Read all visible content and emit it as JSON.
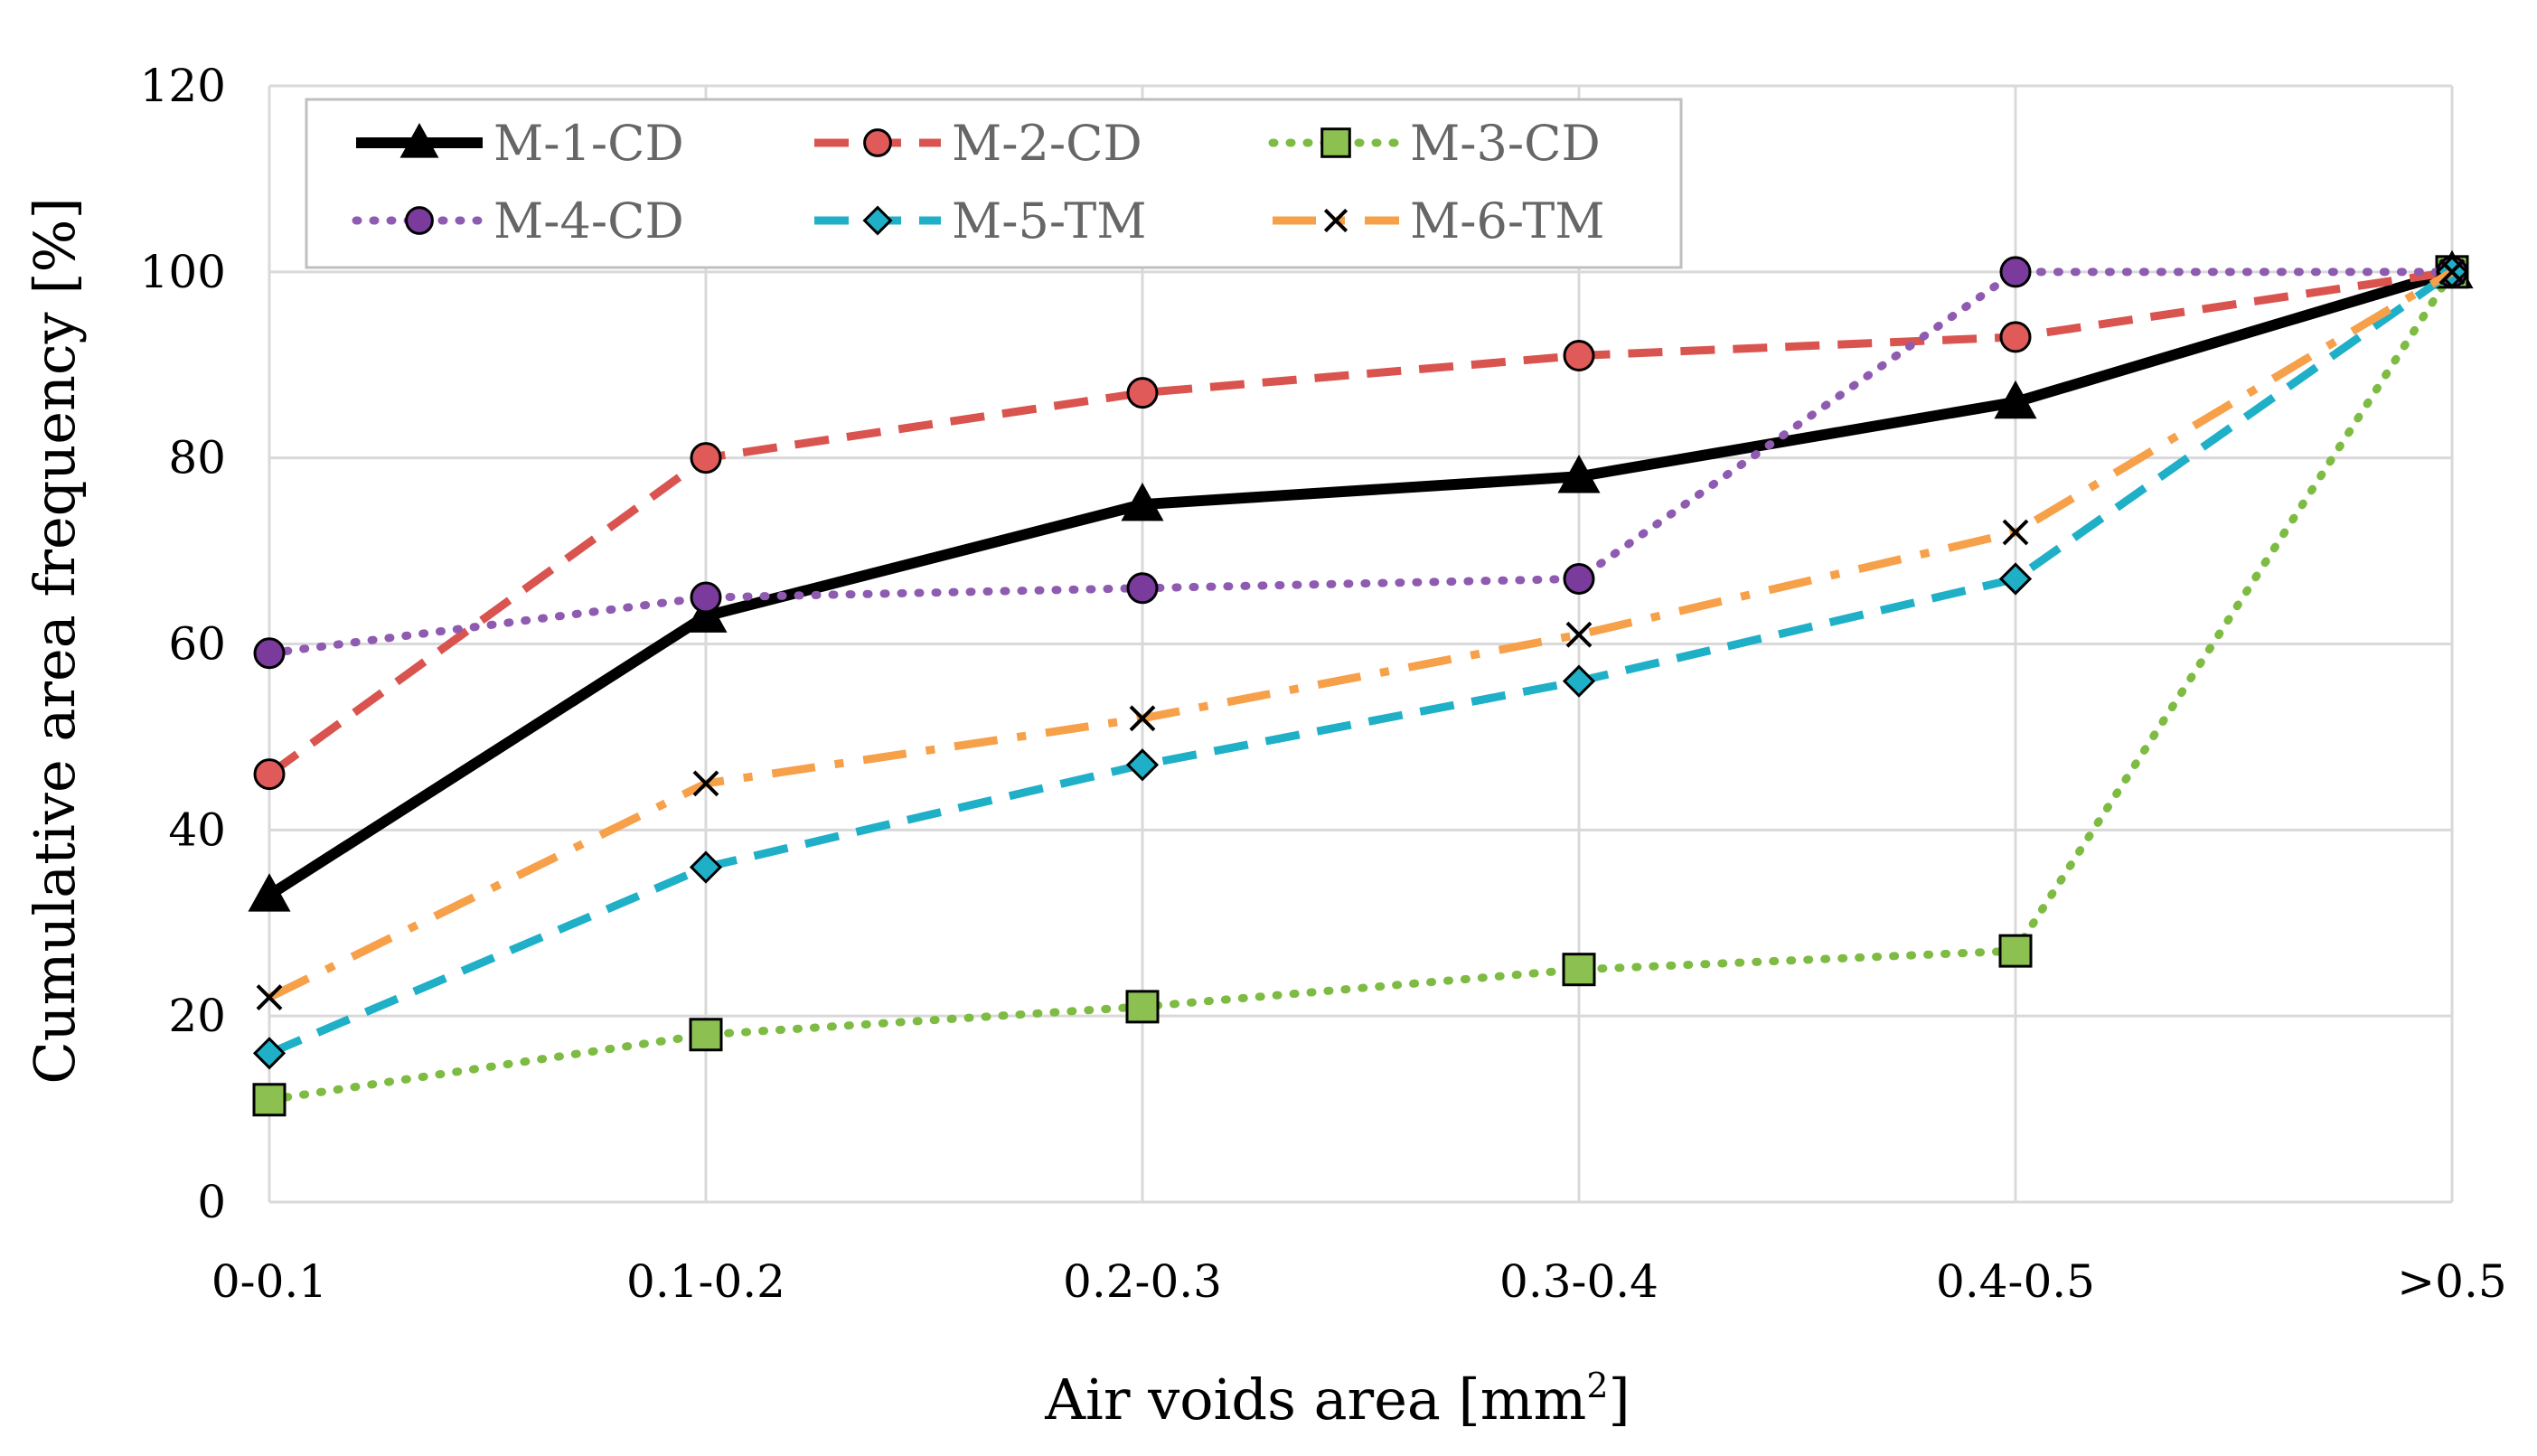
{
  "chart_data": {
    "type": "line",
    "title": "",
    "xlabel": "Air voids area [mm",
    "xlabel_superscript": "2",
    "xlabel_suffix": "]",
    "ylabel": "Cumulative area frequency [%]",
    "ylim": [
      0,
      120
    ],
    "yticks": [
      0,
      20,
      40,
      60,
      80,
      100,
      120
    ],
    "ytick_labels": [
      "0",
      "20",
      "40",
      "60",
      "80",
      "100",
      "120"
    ],
    "grid": true,
    "legend_position": "top-left",
    "categories": [
      "0-0.1",
      "0.1-0.2",
      "0.2-0.3",
      "0.3-0.4",
      "0.4-0.5",
      ">0.5"
    ],
    "series": [
      {
        "name": "M-1-CD",
        "values": [
          33,
          63,
          75,
          78,
          86,
          100
        ],
        "color": "#000000",
        "dash": "solid",
        "marker": "triangle",
        "marker_fill": "#000000"
      },
      {
        "name": "M-2-CD",
        "values": [
          46,
          80,
          87,
          91,
          93,
          100
        ],
        "color": "#d9534f",
        "dash": "dash",
        "marker": "circle",
        "marker_fill": "#e05a5a"
      },
      {
        "name": "M-3-CD",
        "values": [
          11,
          18,
          21,
          25,
          27,
          100
        ],
        "color": "#7dbb42",
        "dash": "dot",
        "marker": "square",
        "marker_fill": "#8cc152"
      },
      {
        "name": "M-4-CD",
        "values": [
          59,
          65,
          66,
          67,
          100,
          100
        ],
        "color": "#8e5bb0",
        "dash": "dot",
        "marker": "circle",
        "marker_fill": "#7a3b9c"
      },
      {
        "name": "M-5-TM",
        "values": [
          16,
          36,
          47,
          56,
          67,
          100
        ],
        "color": "#1fb0c8",
        "dash": "dash",
        "marker": "diamond",
        "marker_fill": "#1fb0c8"
      },
      {
        "name": "M-6-TM",
        "values": [
          22,
          45,
          52,
          61,
          72,
          100
        ],
        "color": "#f7a04a",
        "dash": "dashdot",
        "marker": "x",
        "marker_fill": "none"
      }
    ]
  }
}
